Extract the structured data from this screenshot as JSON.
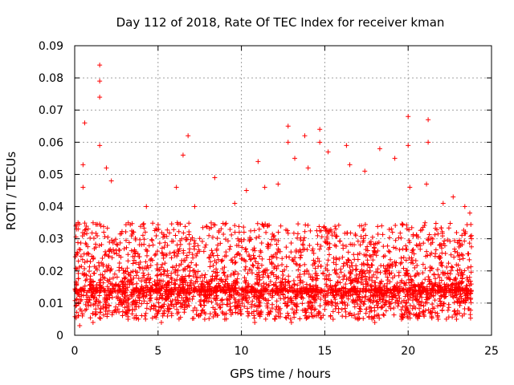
{
  "chart_data": {
    "type": "scatter",
    "title": "Day 112 of 2018, Rate Of TEC Index for receiver kman",
    "xlabel": "GPS time / hours",
    "ylabel": "ROTI / TECUs",
    "xlim": [
      0,
      25
    ],
    "ylim": [
      0,
      0.09
    ],
    "x_ticks": [
      "0",
      "5",
      "10",
      "15",
      "20",
      "25"
    ],
    "y_ticks": [
      "0",
      "0.01",
      "0.02",
      "0.03",
      "0.04",
      "0.05",
      "0.06",
      "0.07",
      "0.08",
      "0.09"
    ],
    "grid": true,
    "marker": "+",
    "point_color": "#ff0000",
    "series": [
      {
        "name": "ROTI",
        "x": [
          0.2,
          0.5,
          1.5,
          1.5,
          1.5,
          1.5,
          0.6,
          0.5,
          1.9,
          2.2,
          4.3,
          6.1,
          6.5,
          6.8,
          7.2,
          8.4,
          9.6,
          10.3,
          11.0,
          11.4,
          12.2,
          12.8,
          12.8,
          13.2,
          13.8,
          14.0,
          14.7,
          14.7,
          15.2,
          16.3,
          16.5,
          17.4,
          18.3,
          19.2,
          20.0,
          20.0,
          20.1,
          21.1,
          21.2,
          21.2,
          22.1,
          22.7,
          23.4,
          23.7,
          0.3,
          1.1,
          3.2,
          5.2,
          7.8,
          9.0,
          10.8,
          12.0,
          13.0,
          15.5,
          17.0,
          18.0,
          19.6,
          21.8,
          22.9,
          0.1,
          23.8
        ],
        "y": [
          0.035,
          0.053,
          0.084,
          0.079,
          0.074,
          0.059,
          0.066,
          0.046,
          0.052,
          0.048,
          0.04,
          0.046,
          0.056,
          0.062,
          0.04,
          0.049,
          0.041,
          0.045,
          0.054,
          0.046,
          0.047,
          0.065,
          0.06,
          0.055,
          0.062,
          0.052,
          0.064,
          0.06,
          0.057,
          0.059,
          0.053,
          0.051,
          0.058,
          0.055,
          0.068,
          0.059,
          0.046,
          0.047,
          0.067,
          0.06,
          0.041,
          0.043,
          0.04,
          0.038,
          0.003,
          0.004,
          0.005,
          0.004,
          0.005,
          0.005,
          0.004,
          0.005,
          0.004,
          0.005,
          0.005,
          0.004,
          0.005,
          0.005,
          0.005,
          0.025,
          0.03
        ]
      }
    ],
    "dense_band": {
      "description_values": "main cloud of ROTI samples",
      "x_range": [
        0.0,
        23.8
      ],
      "typical_range": [
        0.005,
        0.035
      ],
      "median": 0.014
    }
  }
}
